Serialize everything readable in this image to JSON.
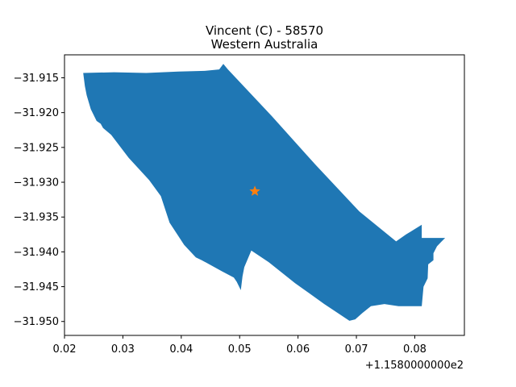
{
  "title": {
    "line1": "Vincent (C) - 58570",
    "line2": "Western Australia"
  },
  "axes": {
    "x_offset_label": "+1.1580000000e2",
    "x_ticks": [
      "0.02",
      "0.03",
      "0.04",
      "0.05",
      "0.06",
      "0.07",
      "0.08"
    ],
    "y_ticks": [
      "−31.915",
      "−31.920",
      "−31.925",
      "−31.930",
      "−31.935",
      "−31.940",
      "−31.945",
      "−31.950"
    ]
  },
  "chart_data": {
    "type": "map",
    "x_offset": 115.8,
    "xlim": [
      0.02,
      0.0885
    ],
    "ylim": [
      -31.952,
      -31.9117
    ],
    "region": {
      "name": "Vincent (C) - 58570",
      "color": "#1f77b4",
      "polygon": [
        [
          0.0232,
          -31.9143
        ],
        [
          0.0285,
          -31.9142
        ],
        [
          0.034,
          -31.9143
        ],
        [
          0.0395,
          -31.9141
        ],
        [
          0.044,
          -31.914
        ],
        [
          0.0465,
          -31.9138
        ],
        [
          0.0472,
          -31.913
        ],
        [
          0.048,
          -31.9138
        ],
        [
          0.0555,
          -31.9205
        ],
        [
          0.063,
          -31.9275
        ],
        [
          0.0705,
          -31.9342
        ],
        [
          0.0768,
          -31.9385
        ],
        [
          0.0785,
          -31.9375
        ],
        [
          0.0812,
          -31.9361
        ],
        [
          0.0812,
          -31.938
        ],
        [
          0.0852,
          -31.938
        ],
        [
          0.0845,
          -31.9386
        ],
        [
          0.0838,
          -31.9392
        ],
        [
          0.0832,
          -31.9402
        ],
        [
          0.0832,
          -31.9412
        ],
        [
          0.0823,
          -31.9418
        ],
        [
          0.0822,
          -31.9438
        ],
        [
          0.0815,
          -31.945
        ],
        [
          0.0812,
          -31.9478
        ],
        [
          0.0772,
          -31.9478
        ],
        [
          0.0748,
          -31.9475
        ],
        [
          0.0725,
          -31.9478
        ],
        [
          0.071,
          -31.9488
        ],
        [
          0.0698,
          -31.9497
        ],
        [
          0.0688,
          -31.9499
        ],
        [
          0.0645,
          -31.9475
        ],
        [
          0.0595,
          -31.9445
        ],
        [
          0.055,
          -31.9415
        ],
        [
          0.052,
          -31.9398
        ],
        [
          0.0508,
          -31.9422
        ],
        [
          0.0505,
          -31.9435
        ],
        [
          0.0502,
          -31.9455
        ],
        [
          0.0495,
          -31.9443
        ],
        [
          0.049,
          -31.9437
        ],
        [
          0.047,
          -31.9428
        ],
        [
          0.0435,
          -31.9412
        ],
        [
          0.0425,
          -31.9408
        ],
        [
          0.0405,
          -31.939
        ],
        [
          0.038,
          -31.9358
        ],
        [
          0.0365,
          -31.932
        ],
        [
          0.0345,
          -31.9297
        ],
        [
          0.031,
          -31.9265
        ],
        [
          0.028,
          -31.9232
        ],
        [
          0.0266,
          -31.9222
        ],
        [
          0.0262,
          -31.9216
        ],
        [
          0.0255,
          -31.9212
        ],
        [
          0.0245,
          -31.9195
        ],
        [
          0.0238,
          -31.9175
        ],
        [
          0.0235,
          -31.9162
        ],
        [
          0.0232,
          -31.9143
        ]
      ]
    },
    "marker": {
      "shape": "star",
      "color": "#ff7f0e",
      "x": 0.0526,
      "y": -31.9313
    }
  }
}
